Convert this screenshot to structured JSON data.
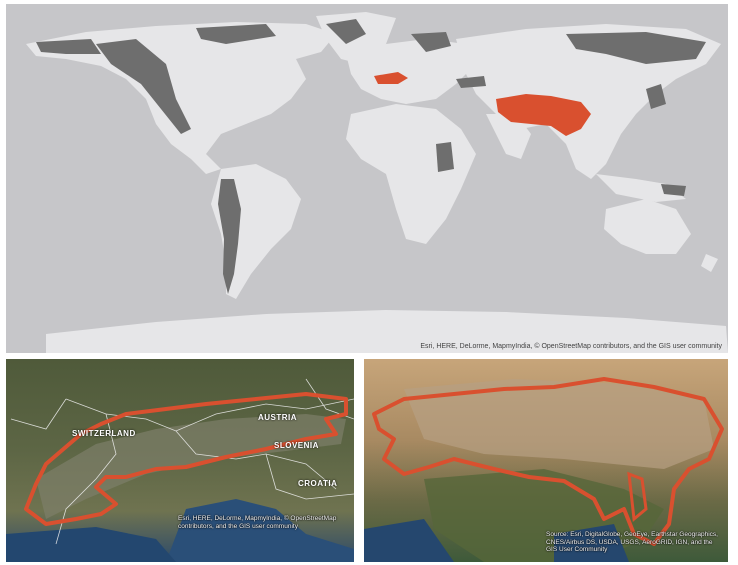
{
  "world_map": {
    "attribution": "Esri, HERE, DeLorme, MapmyIndia, © OpenStreetMap contributors, and the GIS user community",
    "colors": {
      "ocean": "#c6c6c9",
      "land": "#e6e6e8",
      "mountains": "#6e6e6e",
      "highlight": "#d9502f"
    },
    "highlighted_regions": [
      "alps-region-icon",
      "high-mountain-asia-region-icon"
    ]
  },
  "alps_map": {
    "country_labels": [
      "SWITZERLAND",
      "AUSTRIA",
      "SLOVENIA",
      "CROATIA"
    ],
    "attribution": "Esri, HERE, DeLorme, MapmyIndia, © OpenStreetMap contributors, and the GIS user community"
  },
  "asia_map": {
    "attribution": "Source: Esri, DigitalGlobe, GeoEye, Earthstar Geographics, CNES/Airbus DS, USDA, USGS, AeroGRID, IGN, and the GIS User Community"
  }
}
